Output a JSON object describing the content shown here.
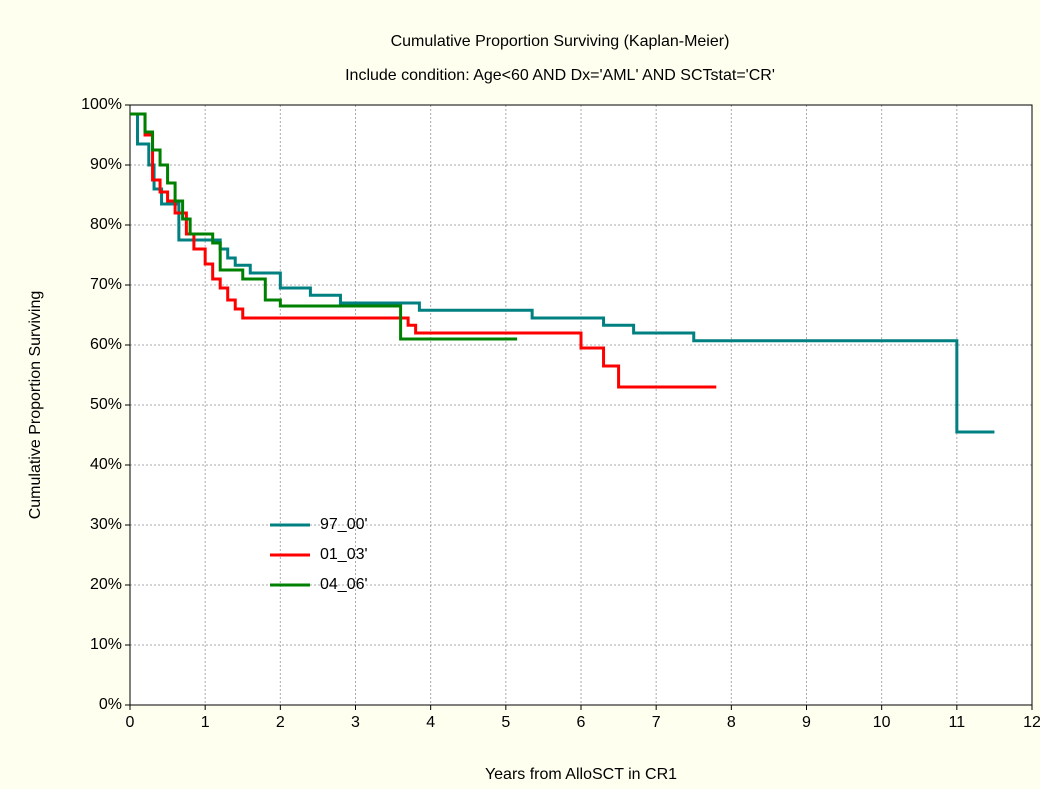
{
  "chart_data": {
    "type": "step",
    "title": "Cumulative Proportion Surviving (Kaplan-Meier)",
    "subtitle": "Include condition: Age<60 AND Dx='AML' AND SCTstat='CR'",
    "xlabel": "Years from AlloSCT in CR1",
    "ylabel": "Cumulative Proportion Surviving",
    "xlim": [
      0,
      12
    ],
    "ylim": [
      0,
      100
    ],
    "xticks": [
      0,
      1,
      2,
      3,
      4,
      5,
      6,
      7,
      8,
      9,
      10,
      11,
      12
    ],
    "yticks": [
      {
        "value": 0,
        "label": "0%"
      },
      {
        "value": 10,
        "label": "10%"
      },
      {
        "value": 20,
        "label": "20%"
      },
      {
        "value": 30,
        "label": "30%"
      },
      {
        "value": 40,
        "label": "40%"
      },
      {
        "value": 50,
        "label": "50%"
      },
      {
        "value": 60,
        "label": "60%"
      },
      {
        "value": 70,
        "label": "70%"
      },
      {
        "value": 80,
        "label": "80%"
      },
      {
        "value": 90,
        "label": "90%"
      },
      {
        "value": 100,
        "label": "100%"
      }
    ],
    "grid": true,
    "legend": "lower left",
    "series": [
      {
        "name": "97_00'",
        "color": "#008080",
        "x": [
          0,
          0.1,
          0.25,
          0.32,
          0.42,
          0.65,
          1.2,
          1.3,
          1.4,
          1.6,
          2.0,
          2.4,
          2.8,
          3.85,
          5.35,
          6.3,
          6.7,
          7.5,
          11.0,
          11.5
        ],
        "values": [
          98.5,
          93.5,
          90,
          86,
          83.5,
          77.5,
          76,
          74.5,
          73.3,
          72,
          69.5,
          68.3,
          67,
          65.8,
          64.5,
          63.3,
          62,
          60.7,
          45.5,
          45.5
        ]
      },
      {
        "name": "01_03'",
        "color": "#ff0000",
        "x": [
          0,
          0.2,
          0.3,
          0.4,
          0.5,
          0.6,
          0.75,
          0.85,
          1.0,
          1.1,
          1.2,
          1.3,
          1.4,
          1.5,
          3.7,
          3.8,
          6.0,
          6.3,
          6.5,
          7.8
        ],
        "values": [
          98.5,
          95,
          87.5,
          85.5,
          84,
          82,
          78.5,
          76,
          73.5,
          71,
          69.5,
          67.5,
          66,
          64.5,
          63.3,
          62,
          59.5,
          56.5,
          53,
          53
        ]
      },
      {
        "name": "04_06'",
        "color": "#008000",
        "x": [
          0,
          0.2,
          0.3,
          0.4,
          0.5,
          0.6,
          0.7,
          0.8,
          1.1,
          1.2,
          1.5,
          1.8,
          2.0,
          3.6,
          5.15
        ],
        "values": [
          98.5,
          95.5,
          92.5,
          90,
          87,
          84,
          81,
          78.5,
          77,
          72.5,
          71,
          67.5,
          66.5,
          61,
          61
        ]
      }
    ]
  }
}
